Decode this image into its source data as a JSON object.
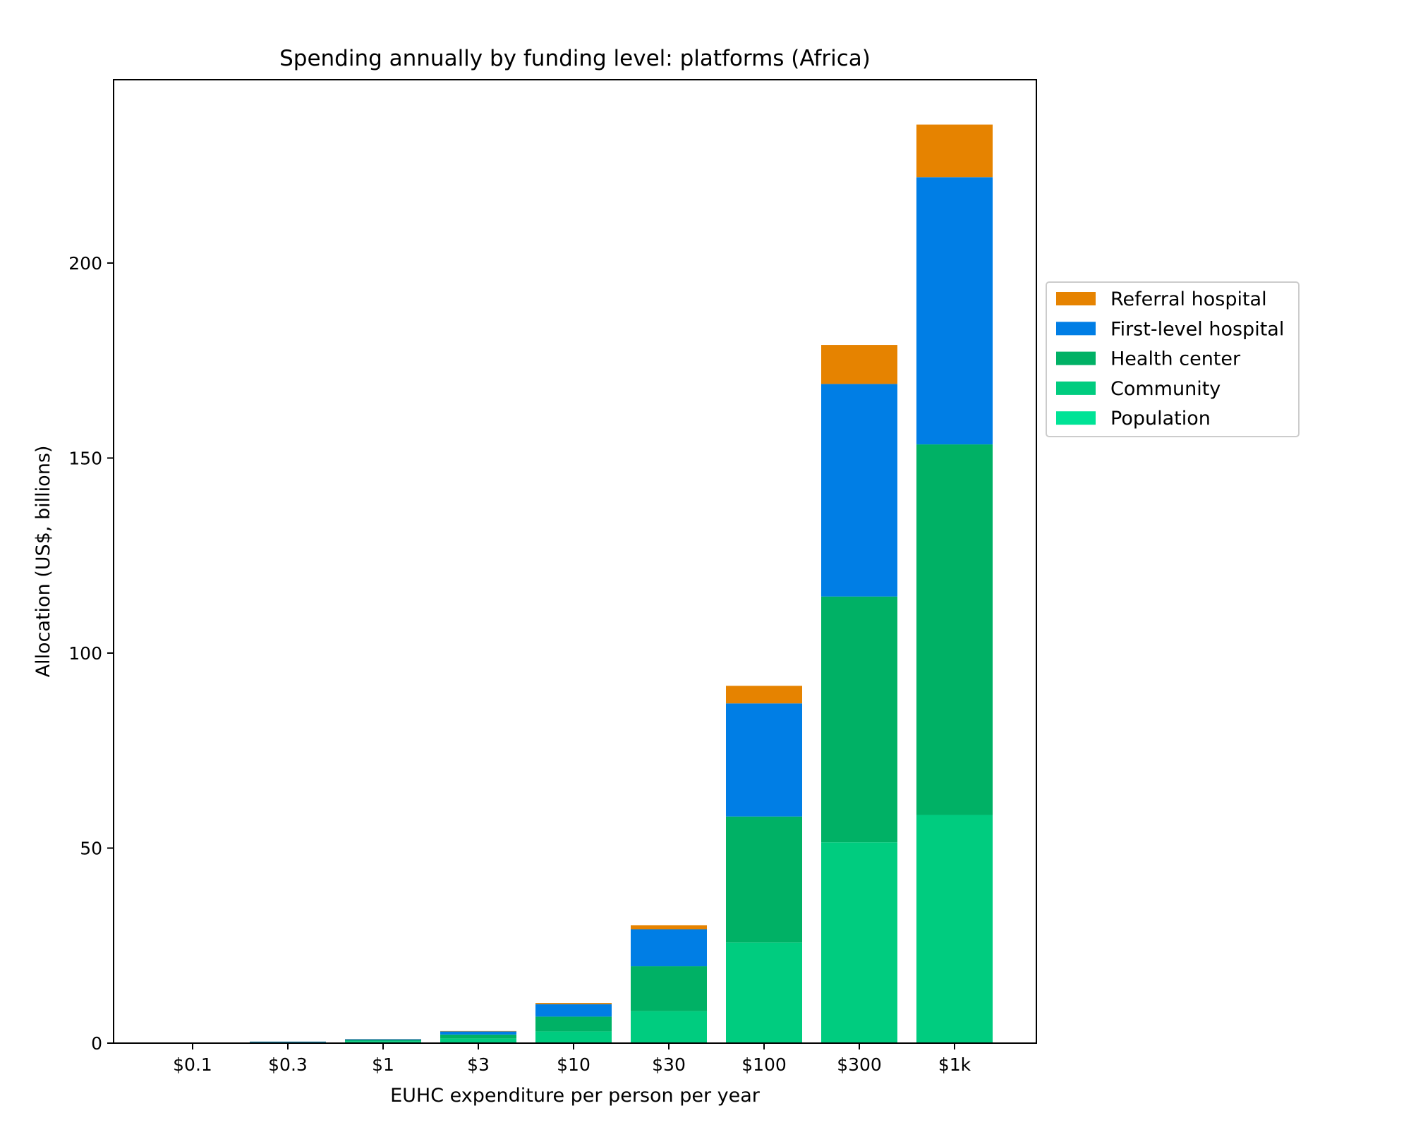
{
  "chart_data": {
    "type": "bar",
    "stacked": true,
    "title": "Spending annually by funding level: platforms (Africa)",
    "xlabel": "EUHC expenditure per person per year",
    "ylabel": "Allocation (US$, billions)",
    "ylim": [
      0,
      247
    ],
    "yticks": [
      0,
      50,
      100,
      150,
      200
    ],
    "grid": false,
    "legend_position": "right",
    "categories": [
      "$0.1",
      "$0.3",
      "$1",
      "$3",
      "$10",
      "$30",
      "$100",
      "$300",
      "$1k"
    ],
    "series": [
      {
        "name": "Population",
        "color": "#00e396",
        "values": [
          0,
          0,
          0,
          0,
          0,
          0,
          0,
          0,
          0
        ]
      },
      {
        "name": "Community",
        "color": "#00cc7f",
        "values": [
          0.05,
          0.15,
          0.5,
          1.2,
          3.0,
          8.2,
          25.8,
          51.5,
          58.5
        ]
      },
      {
        "name": "Health center",
        "color": "#00b165",
        "values": [
          0.03,
          0.1,
          0.3,
          1.0,
          3.8,
          11.5,
          32.3,
          63.0,
          95.0
        ]
      },
      {
        "name": "First-level hospital",
        "color": "#007ee5",
        "values": [
          0.02,
          0.15,
          0.2,
          0.8,
          3.2,
          9.5,
          29.0,
          54.5,
          68.5
        ]
      },
      {
        "name": "Referral hospital",
        "color": "#e68300",
        "values": [
          0,
          0.02,
          0.05,
          0.1,
          0.3,
          1.0,
          4.5,
          10.0,
          13.5
        ]
      }
    ]
  }
}
